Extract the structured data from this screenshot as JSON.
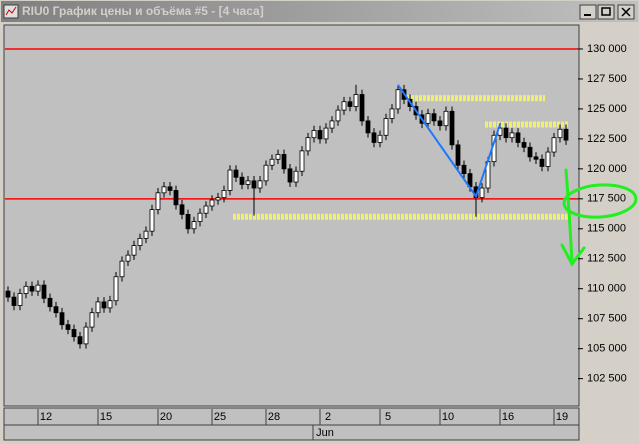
{
  "window": {
    "title": "RIU0 График цены и объёма #5 - [4 часа]"
  },
  "chart_data": {
    "type": "candlestick",
    "categories": [
      null,
      null,
      null,
      null,
      null,
      null,
      "12",
      null,
      null,
      null,
      null,
      null,
      null,
      null,
      null,
      null,
      "15",
      null,
      null,
      null,
      null,
      null,
      null,
      null,
      null,
      null,
      "20",
      null,
      null,
      null,
      null,
      null,
      null,
      null,
      null,
      "25",
      null,
      null,
      null,
      null,
      null,
      null,
      null,
      null,
      "28",
      null,
      null,
      null,
      null,
      null,
      null,
      null,
      null,
      "2",
      null,
      null,
      null,
      null,
      null,
      null,
      null,
      null,
      null,
      "5",
      null,
      null,
      null,
      null,
      null,
      null,
      null,
      null,
      null,
      "10",
      null,
      null,
      null,
      null,
      null,
      null,
      null,
      null,
      null,
      "16",
      null,
      null,
      null,
      null,
      null,
      null,
      null,
      null,
      "19",
      null
    ],
    "month": {
      "label": "Jun",
      "start": 51
    },
    "open": [
      109800,
      109300,
      108600,
      109600,
      110200,
      109800,
      110300,
      109200,
      108500,
      108000,
      107000,
      106600,
      106000,
      105400,
      106800,
      108000,
      108900,
      108400,
      109000,
      111000,
      112300,
      112800,
      113600,
      114200,
      114800,
      116600,
      118000,
      118500,
      118200,
      117000,
      116200,
      115000,
      115600,
      116300,
      116900,
      117400,
      117600,
      118200,
      119900,
      119300,
      118700,
      119000,
      118400,
      119000,
      120300,
      120800,
      121200,
      120000,
      118900,
      119800,
      121500,
      122600,
      123200,
      122500,
      123400,
      124000,
      124900,
      125600,
      125200,
      126200,
      124000,
      123000,
      122200,
      122800,
      124200,
      125000,
      126600,
      125800,
      125200,
      124500,
      123800,
      124600,
      124000,
      123600,
      124800,
      122000,
      120300,
      119600,
      118500,
      117600,
      118400,
      120600,
      122800,
      123400,
      122600,
      123000,
      122200,
      121800,
      121000,
      120800,
      120200,
      121400,
      122600,
      123300
    ],
    "high": [
      110200,
      109700,
      110000,
      110600,
      110600,
      110700,
      110700,
      109600,
      108900,
      108400,
      107400,
      107000,
      106400,
      107200,
      108400,
      109300,
      109300,
      109400,
      111400,
      112700,
      113200,
      114000,
      114600,
      115200,
      117000,
      118400,
      118900,
      118900,
      118600,
      117400,
      116600,
      116000,
      116700,
      117300,
      117800,
      118000,
      118600,
      120300,
      120300,
      119700,
      119400,
      119400,
      119400,
      120700,
      121200,
      121600,
      121600,
      120400,
      120200,
      121900,
      123000,
      123600,
      123600,
      123800,
      124400,
      125300,
      126000,
      126000,
      127000,
      126600,
      124400,
      123400,
      123200,
      124600,
      125400,
      127000,
      127000,
      126200,
      125600,
      124900,
      125000,
      125000,
      124400,
      125200,
      125200,
      122400,
      120700,
      120000,
      118900,
      118800,
      121000,
      123200,
      123800,
      123800,
      123400,
      123400,
      122600,
      122200,
      121400,
      121200,
      121800,
      123000,
      123700,
      123700
    ],
    "low": [
      108900,
      108200,
      108200,
      109200,
      109400,
      109400,
      108800,
      108100,
      107600,
      106600,
      106200,
      105600,
      105000,
      105000,
      106400,
      107600,
      108000,
      108000,
      108600,
      110600,
      111900,
      112400,
      113200,
      113800,
      114400,
      116200,
      117600,
      117800,
      116600,
      115800,
      114600,
      114600,
      115200,
      115900,
      116500,
      117000,
      117200,
      117800,
      118900,
      118300,
      118300,
      116100,
      118000,
      118600,
      119900,
      120400,
      119600,
      118500,
      118500,
      119400,
      121100,
      122200,
      122100,
      122100,
      123000,
      123600,
      124500,
      124800,
      124800,
      123600,
      122600,
      121800,
      121800,
      122400,
      123800,
      124600,
      125400,
      124800,
      124100,
      123400,
      123400,
      123600,
      123200,
      123200,
      121600,
      119900,
      119200,
      118100,
      116000,
      117200,
      118000,
      120200,
      122400,
      122200,
      122200,
      121800,
      121400,
      120600,
      120400,
      119800,
      119800,
      121000,
      122200,
      122000
    ],
    "close": [
      109300,
      108600,
      109600,
      110200,
      109800,
      110300,
      109200,
      108500,
      108000,
      107000,
      106600,
      106000,
      105400,
      106800,
      108000,
      108900,
      108400,
      109000,
      111000,
      112300,
      112800,
      113600,
      114200,
      114800,
      116600,
      118000,
      118500,
      118200,
      117000,
      116200,
      115000,
      115600,
      116300,
      116900,
      117400,
      117600,
      118200,
      119900,
      119300,
      118700,
      119000,
      118400,
      119000,
      120300,
      120800,
      121200,
      120000,
      118900,
      119800,
      121500,
      122600,
      123200,
      122500,
      123400,
      124000,
      124900,
      125600,
      125200,
      126200,
      124000,
      123000,
      122200,
      122800,
      124200,
      125000,
      126600,
      125800,
      125200,
      124500,
      123800,
      124600,
      124000,
      123600,
      124800,
      122000,
      120300,
      119600,
      118500,
      117600,
      118400,
      120600,
      122800,
      123400,
      122600,
      123000,
      122200,
      121800,
      121000,
      120800,
      120200,
      121400,
      122600,
      123300,
      122400
    ],
    "ylim": [
      100300,
      132000
    ],
    "yticks": [
      {
        "value": 102500,
        "label": "102 500"
      },
      {
        "value": 105000,
        "label": "105 000"
      },
      {
        "value": 107500,
        "label": "107 500"
      },
      {
        "value": 110000,
        "label": "110 000"
      },
      {
        "value": 112500,
        "label": "112 500"
      },
      {
        "value": 115000,
        "label": "115 000"
      },
      {
        "value": 117500,
        "label": "117 500"
      },
      {
        "value": 120000,
        "label": "120 000"
      },
      {
        "value": 122500,
        "label": "122 500"
      },
      {
        "value": 125000,
        "label": "125 000"
      },
      {
        "value": 127500,
        "label": "127 500"
      },
      {
        "value": 130000,
        "label": "130 000"
      }
    ],
    "levels": [
      {
        "value": 130000,
        "color": "#ff0000"
      },
      {
        "value": 117500,
        "color": "#ff0000"
      }
    ],
    "zones": [
      {
        "value": 125900,
        "from": 67,
        "to": 89
      },
      {
        "value": 123700,
        "from": 80,
        "to": 93
      },
      {
        "value": 116000,
        "from": 38,
        "to": 93
      }
    ],
    "zone_color": "#f0f070",
    "trend": {
      "color": "#1e78ff",
      "x": [
        65,
        78,
        82
      ],
      "y": [
        127000,
        117700,
        123700
      ]
    },
    "up_color": "#ffffff",
    "down_color": "#000000"
  }
}
